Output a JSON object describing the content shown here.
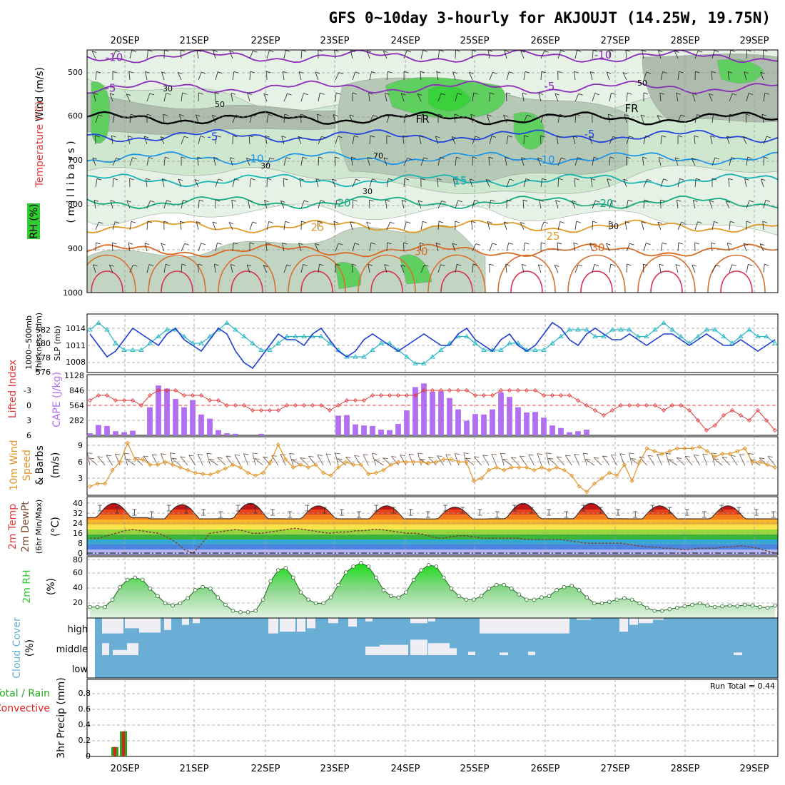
{
  "title": "GFS 0~10day 3-hourly for AKJOUJT (14.25W, 19.75N)",
  "days": [
    "20SEP",
    "21SEP",
    "22SEP",
    "23SEP",
    "24SEP",
    "25SEP",
    "26SEP",
    "27SEP",
    "28SEP",
    "29SEP"
  ],
  "colors": {
    "slp": "#1f3fcf",
    "thick": "#2ab8c8",
    "lifted": "#e03a3a",
    "cape": "#b070f0",
    "wind": "#e0962a",
    "rh": "#2ecc2e",
    "cloud": "#6aaed6",
    "cloudfill": "#efeef5",
    "total": "#22aa22",
    "conv": "#e02020"
  },
  "labels": {
    "wind_axis": "Wind (m/s)",
    "temp_axis": "Temperature (°C)",
    "rh_axis": "RH (%)",
    "mb_axis": "( m i l l i b a r s )",
    "slp": "SLP (mb)",
    "thick": "1000~500mb",
    "thick2": "Thickness (dm)",
    "lifted": "Lifted Index",
    "cape": "CAPE (J/kg)",
    "wind10": "10m Wind",
    "speed": "Speed",
    "barbs": "& Barbs",
    "ms": "(m/s)",
    "temp2m": "2m Temp",
    "dew2m": "2m DewPt",
    "minmax": "(6hr Min/Max)",
    "degc": "(°C)",
    "rh2m": "2m RH",
    "pct": "(%)",
    "cloud": "Cloud Cover",
    "cloudpct": "(%)",
    "precip": "3hr Precip (mm)",
    "total": "Total / Rain",
    "conv": "Convective",
    "run_total": "Run Total = 0.44",
    "fr": "FR"
  },
  "chart_data": [
    {
      "type": "heatmap",
      "name": "time-pressure cross section",
      "ylabel": "millibars",
      "y_ticks": [
        500,
        600,
        700,
        800,
        900,
        1000
      ],
      "ylim": [
        1000,
        450
      ],
      "temp_contours": [
        {
          "label": "-10",
          "color": "#8a2cb8",
          "mb": 465
        },
        {
          "label": "-5",
          "color": "#8a2cb8",
          "mb": 535
        },
        {
          "label": "FR",
          "color": "#000000",
          "mb": 605
        },
        {
          "label": "-5",
          "color": "#2244dd",
          "mb": 645
        },
        {
          "label": "10",
          "color": "#1e96e6",
          "mb": 695
        },
        {
          "label": "15",
          "color": "#18b4b4",
          "mb": 745
        },
        {
          "label": "20",
          "color": "#14aa82",
          "mb": 795
        },
        {
          "label": "25",
          "color": "#e09a28",
          "mb": 850
        },
        {
          "label": "30",
          "color": "#d86a20",
          "mb": 905
        }
      ],
      "rh_labels": [
        "30",
        "50",
        "70"
      ]
    },
    {
      "type": "line",
      "name": "SLP and thickness",
      "slp_ticks": [
        1008,
        1011,
        1014
      ],
      "thick_ticks": [
        576,
        578,
        580,
        582
      ],
      "slp": [
        1013,
        1011,
        1009,
        1010,
        1012,
        1014,
        1013,
        1012,
        1011,
        1013,
        1014,
        1012,
        1011,
        1010,
        1012,
        1014,
        1013,
        1010,
        1008,
        1007,
        1009,
        1011,
        1013,
        1012,
        1012,
        1011,
        1013,
        1014,
        1012,
        1010,
        1009,
        1010,
        1012,
        1013,
        1012,
        1011,
        1010,
        1011,
        1012,
        1013,
        1012,
        1011,
        1011,
        1013,
        1014,
        1012,
        1011,
        1010,
        1012,
        1013,
        1011,
        1010,
        1011,
        1013,
        1015,
        1014,
        1012,
        1011,
        1013,
        1014,
        1013,
        1012,
        1012,
        1013,
        1012,
        1011,
        1012,
        1013,
        1013,
        1012,
        1011,
        1012,
        1013,
        1012,
        1011,
        1011,
        1012,
        1011,
        1010,
        1011,
        1012
      ],
      "thick": [
        582,
        583,
        582,
        580,
        579,
        579,
        579,
        580,
        581,
        582,
        582,
        581,
        580,
        580,
        581,
        582,
        583,
        582,
        581,
        580,
        579,
        579,
        580,
        581,
        581,
        581,
        581,
        581,
        580,
        579,
        578,
        578,
        578,
        579,
        580,
        580,
        579,
        578,
        577,
        577,
        578,
        579,
        580,
        581,
        581,
        580,
        579,
        579,
        579,
        580,
        580,
        579,
        579,
        579,
        580,
        581,
        582,
        582,
        582,
        581,
        581,
        582,
        582,
        582,
        581,
        581,
        582,
        583,
        582,
        581,
        580,
        581,
        582,
        582,
        581,
        580,
        581,
        582,
        581,
        581,
        580
      ]
    },
    {
      "type": "bar",
      "name": "CAPE and lifted index",
      "cape_ticks": [
        282,
        564,
        846,
        1128
      ],
      "li_ticks": [
        -3,
        0,
        3,
        6
      ],
      "cape": [
        40,
        200,
        180,
        80,
        60,
        90,
        0,
        540,
        960,
        900,
        700,
        540,
        680,
        400,
        320,
        100,
        40,
        30,
        0,
        0,
        30,
        0,
        0,
        0,
        0,
        0,
        0,
        0,
        0,
        380,
        390,
        210,
        190,
        180,
        110,
        100,
        220,
        480,
        930,
        1000,
        840,
        850,
        720,
        500,
        280,
        410,
        400,
        500,
        830,
        740,
        540,
        440,
        450,
        340,
        190,
        140,
        60,
        80,
        110,
        0,
        0,
        0,
        0,
        0,
        0,
        0,
        0,
        0,
        0,
        0,
        0,
        0,
        0,
        0,
        0,
        0,
        0,
        0,
        0,
        0,
        0
      ],
      "lifted": [
        -1,
        -2,
        -2,
        -1,
        -1,
        -1,
        0,
        -2,
        -3,
        -3,
        -3,
        -2,
        -2,
        -2,
        -1,
        -1,
        0,
        0,
        0,
        1,
        1,
        1,
        1,
        0,
        0,
        0,
        0,
        0,
        1,
        0,
        -1,
        -1,
        -1,
        -2,
        -2,
        -2,
        -2,
        -2,
        -2,
        -3,
        -3,
        -3,
        -3,
        -3,
        -3,
        -2,
        -2,
        -2,
        -3,
        -3,
        -3,
        -3,
        -3,
        -2,
        -2,
        -2,
        -2,
        -1,
        0,
        1,
        2,
        1,
        0,
        0,
        0,
        0,
        0,
        1,
        0,
        0,
        1,
        3,
        5,
        4,
        2,
        1,
        2,
        3,
        1,
        3,
        5
      ]
    },
    {
      "type": "line",
      "name": "10m wind speed",
      "y_ticks": [
        3,
        6,
        9
      ],
      "values": [
        1.5,
        2,
        2,
        4.5,
        6,
        9.5,
        6.5,
        6.5,
        5.5,
        5.5,
        6,
        5.5,
        5,
        4.5,
        4,
        3.8,
        3.7,
        4.2,
        4.8,
        5.5,
        5,
        4,
        3.5,
        4,
        6,
        9.2,
        6.5,
        5,
        5.5,
        5,
        5.5,
        4,
        3.5,
        5,
        6,
        5.5,
        5.5,
        3.8,
        4,
        4.5,
        5.5,
        6,
        6,
        6,
        6,
        5.8,
        6,
        6.5,
        6.5,
        6,
        6,
        2.5,
        3,
        4.5,
        5,
        4.5,
        5,
        5,
        5,
        4.5,
        5,
        4.5,
        5,
        4.5,
        3.5,
        1.5,
        0.5,
        2,
        3,
        4,
        3.5,
        5.5,
        2.5,
        6,
        8.5,
        8,
        7.5,
        8,
        8.5,
        8.5,
        8.5,
        8.8,
        8,
        7,
        7.5,
        7.5,
        8,
        8.5,
        6,
        6,
        5.5,
        5
      ]
    },
    {
      "type": "area",
      "name": "2m temperature and dew point",
      "y_ticks": [
        0,
        8,
        16,
        24,
        32,
        40
      ],
      "temp_max": [
        41,
        40,
        41,
        39,
        39,
        38,
        41,
        41,
        39,
        39
      ],
      "temp_min": [
        29,
        28,
        28,
        28,
        28,
        28,
        28,
        28,
        28,
        28
      ],
      "dewpoint": [
        13,
        13,
        15,
        17,
        19,
        20,
        19,
        18,
        17,
        14,
        10,
        4,
        1,
        8,
        17,
        18,
        19,
        20,
        19,
        17,
        17,
        18,
        19,
        20,
        21,
        20,
        19,
        18,
        17,
        18,
        18,
        19,
        19,
        20,
        20,
        19,
        18,
        17,
        17,
        16,
        14,
        13,
        14,
        15,
        15,
        14,
        13,
        13,
        13,
        13,
        13,
        12,
        12,
        12,
        12,
        12,
        11,
        10,
        9,
        9,
        9,
        9,
        9,
        8,
        7,
        6,
        6,
        5,
        5,
        4,
        4,
        5,
        5,
        5,
        6,
        6,
        7,
        6,
        5,
        3,
        1
      ]
    },
    {
      "type": "area",
      "name": "2m RH",
      "y_ticks": [
        20,
        40,
        60,
        80
      ],
      "values": [
        15,
        15,
        15,
        25,
        42,
        52,
        55,
        52,
        40,
        30,
        20,
        17,
        20,
        27,
        38,
        42,
        40,
        28,
        18,
        10,
        8,
        8,
        10,
        25,
        50,
        65,
        68,
        55,
        35,
        25,
        20,
        20,
        28,
        45,
        62,
        70,
        75,
        70,
        55,
        38,
        30,
        28,
        35,
        52,
        65,
        72,
        70,
        55,
        40,
        30,
        25,
        25,
        30,
        40,
        45,
        45,
        40,
        32,
        25,
        25,
        28,
        30,
        38,
        42,
        44,
        38,
        28,
        20,
        20,
        22,
        25,
        27,
        25,
        20,
        14,
        10,
        10,
        12,
        14,
        16,
        18,
        20,
        17,
        15,
        16,
        17,
        16,
        18,
        17,
        15,
        14,
        17
      ]
    },
    {
      "type": "table",
      "name": "cloud cover",
      "levels": [
        "high",
        "middle",
        "low"
      ]
    },
    {
      "type": "bar",
      "name": "3hr precipitation",
      "y_ticks": [
        0,
        0.2,
        0.4,
        0.6,
        0.8
      ],
      "total": [
        0,
        0.12,
        0.32
      ],
      "convective": [
        0,
        0.12,
        0.32
      ]
    }
  ]
}
